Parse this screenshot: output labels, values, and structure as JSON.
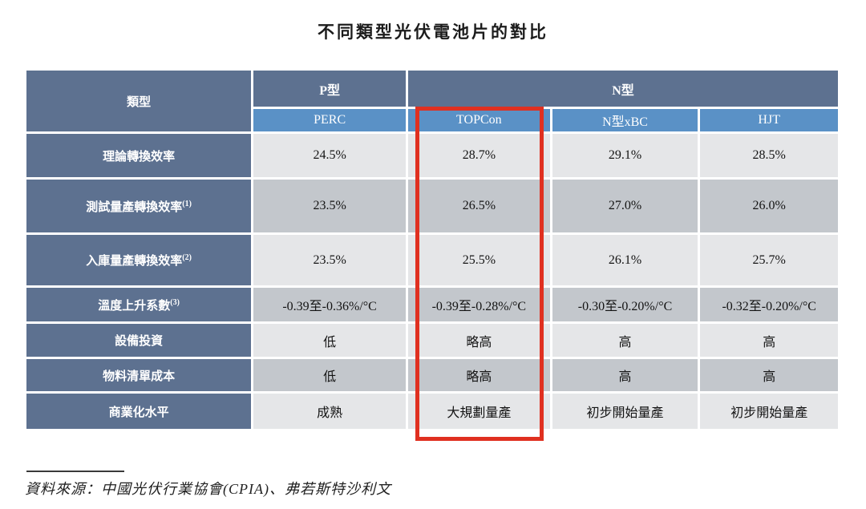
{
  "title": "不同類型光伏電池片的對比",
  "table": {
    "corner_label": "類型",
    "groups": [
      {
        "label": "P型",
        "span": 1
      },
      {
        "label": "N型",
        "span": 3
      }
    ],
    "columns": [
      "PERC",
      "TOPCon",
      "N型xBC",
      "HJT"
    ],
    "rows": [
      {
        "label": "理論轉換效率",
        "sup": "",
        "values": [
          "24.5%",
          "28.7%",
          "29.1%",
          "28.5%"
        ]
      },
      {
        "label": "測試量產轉換效率",
        "sup": "(1)",
        "values": [
          "23.5%",
          "26.5%",
          "27.0%",
          "26.0%"
        ]
      },
      {
        "label": "入庫量產轉換效率",
        "sup": "(2)",
        "values": [
          "23.5%",
          "25.5%",
          "26.1%",
          "25.7%"
        ]
      },
      {
        "label": "溫度上升系數",
        "sup": "(3)",
        "values": [
          "-0.39至-0.36%/°C",
          "-0.39至-0.28%/°C",
          "-0.30至-0.20%/°C",
          "-0.32至-0.20%/°C"
        ]
      },
      {
        "label": "設備投資",
        "sup": "",
        "values": [
          "低",
          "略高",
          "高",
          "高"
        ]
      },
      {
        "label": "物料清單成本",
        "sup": "",
        "values": [
          "低",
          "略高",
          "高",
          "高"
        ]
      },
      {
        "label": "商業化水平",
        "sup": "",
        "values": [
          "成熟",
          "大規劃量產",
          "初步開始量產",
          "初步開始量產"
        ]
      }
    ],
    "highlighted_column": "TOPCon"
  },
  "source_note": "資料來源：中國光伏行業協會(CPIA)、弗若斯特沙利文",
  "colors": {
    "header_dark": "#5d7190",
    "header_blue": "#5a91c6",
    "row_light": "#e5e6e8",
    "row_dark": "#c3c7cc",
    "highlight_red": "#e03020"
  }
}
